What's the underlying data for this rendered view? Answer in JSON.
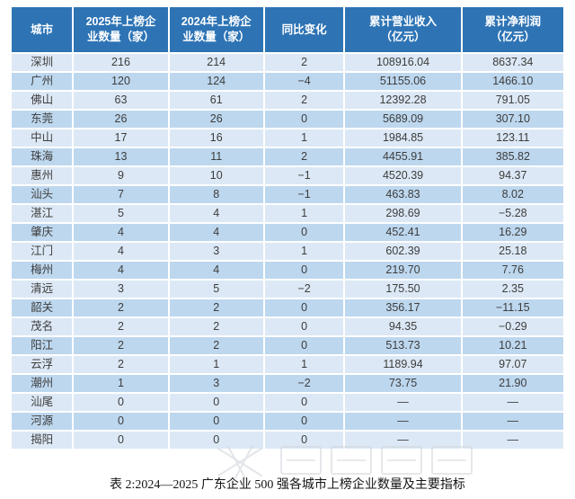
{
  "theme": {
    "header_bg": "#2e74b5",
    "header_text": "#ffffff",
    "row_light": "#dce8f5",
    "row_dark": "#bdd7ee",
    "body_text": "#3d3d3d"
  },
  "table": {
    "columns": [
      {
        "id": "city",
        "lines": [
          "城市"
        ]
      },
      {
        "id": "count-2025",
        "lines": [
          "2025年上榜企",
          "业数量（家）"
        ]
      },
      {
        "id": "count-2024",
        "lines": [
          "2024年上榜企",
          "业数量（家）"
        ]
      },
      {
        "id": "yoy-change",
        "lines": [
          "同比变化"
        ]
      },
      {
        "id": "revenue",
        "lines": [
          "累计营业收入",
          "（亿元）"
        ]
      },
      {
        "id": "net-profit",
        "lines": [
          "累计净利润",
          "（亿元）"
        ]
      }
    ],
    "rows": [
      [
        "深圳",
        "216",
        "214",
        "2",
        "108916.04",
        "8637.34"
      ],
      [
        "广州",
        "120",
        "124",
        "−4",
        "51155.06",
        "1466.10"
      ],
      [
        "佛山",
        "63",
        "61",
        "2",
        "12392.28",
        "791.05"
      ],
      [
        "东莞",
        "26",
        "26",
        "0",
        "5689.09",
        "307.10"
      ],
      [
        "中山",
        "17",
        "16",
        "1",
        "1984.85",
        "123.11"
      ],
      [
        "珠海",
        "13",
        "11",
        "2",
        "4455.91",
        "385.82"
      ],
      [
        "惠州",
        "9",
        "10",
        "−1",
        "4520.39",
        "94.37"
      ],
      [
        "汕头",
        "7",
        "8",
        "−1",
        "463.83",
        "8.02"
      ],
      [
        "湛江",
        "5",
        "4",
        "1",
        "298.69",
        "−5.28"
      ],
      [
        "肇庆",
        "4",
        "4",
        "0",
        "452.41",
        "16.29"
      ],
      [
        "江门",
        "4",
        "3",
        "1",
        "602.39",
        "25.18"
      ],
      [
        "梅州",
        "4",
        "4",
        "0",
        "219.70",
        "7.76"
      ],
      [
        "清远",
        "3",
        "5",
        "−2",
        "175.50",
        "2.35"
      ],
      [
        "韶关",
        "2",
        "2",
        "0",
        "356.17",
        "−11.15"
      ],
      [
        "茂名",
        "2",
        "2",
        "0",
        "94.35",
        "−0.29"
      ],
      [
        "阳江",
        "2",
        "2",
        "0",
        "513.73",
        "10.21"
      ],
      [
        "云浮",
        "2",
        "1",
        "1",
        "1189.94",
        "97.07"
      ],
      [
        "潮州",
        "1",
        "3",
        "−2",
        "73.75",
        "21.90"
      ],
      [
        "汕尾",
        "0",
        "0",
        "0",
        "—",
        "—"
      ],
      [
        "河源",
        "0",
        "0",
        "0",
        "—",
        "—"
      ],
      [
        "揭阳",
        "0",
        "0",
        "0",
        "—",
        "—"
      ]
    ]
  },
  "caption": "表 2:2024—2025 广东企业 500 强各城市上榜企业数量及主要指标"
}
